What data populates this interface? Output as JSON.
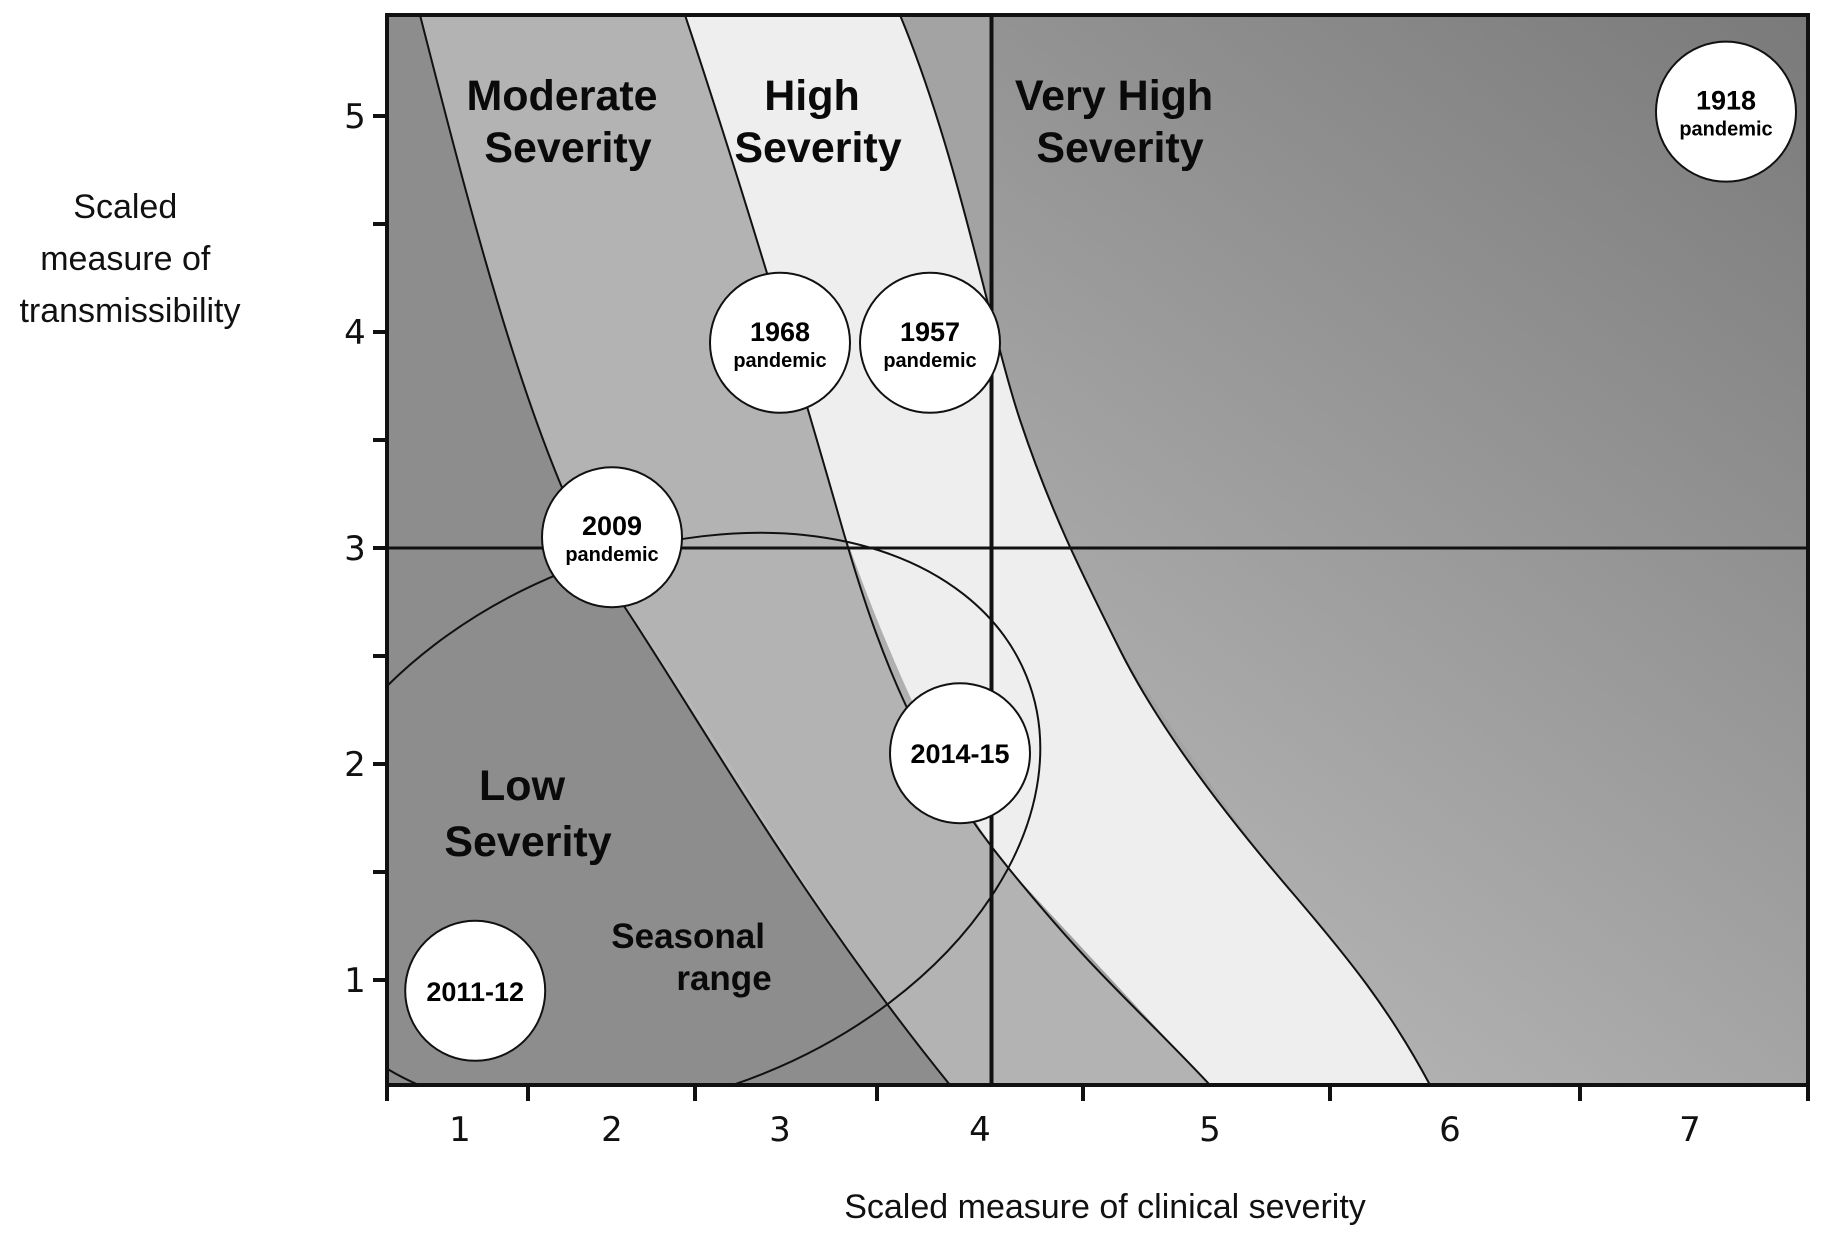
{
  "chart_data": {
    "type": "scatter",
    "xlabel": "Scaled measure of clinical severity",
    "ylabel": [
      "Scaled",
      "measure of",
      "transmissibility"
    ],
    "x_ticks": [
      1,
      2,
      3,
      4,
      5,
      6,
      7
    ],
    "y_ticks": [
      1,
      2,
      3,
      4,
      5
    ],
    "xlim": [
      0.65,
      7.55
    ],
    "ylim": [
      0.55,
      5.5
    ],
    "thresholds": {
      "x": 4.05,
      "y": 3.0
    },
    "regions": [
      {
        "name": "low",
        "lines": [
          "Low",
          "Severity"
        ],
        "x": 1.95,
        "y": 1.78
      },
      {
        "name": "moderate",
        "lines": [
          "Moderate",
          "Severity"
        ],
        "x": 2.35,
        "y": 4.98
      },
      {
        "name": "high",
        "lines": [
          "High",
          "Severity"
        ],
        "x": 3.4,
        "y": 4.98
      },
      {
        "name": "very-high",
        "lines": [
          "Very High",
          "Severity"
        ],
        "x": 4.75,
        "y": 4.98
      }
    ],
    "seasonal_range": {
      "lines": [
        "Seasonal",
        "range"
      ],
      "center": [
        2.6,
        1.78
      ],
      "rx": 1.55,
      "ry": 1.22
    },
    "points": [
      {
        "label": "1918",
        "sublabel": "pandemic",
        "x": 7.15,
        "y": 5.02
      },
      {
        "label": "1968",
        "sublabel": "pandemic",
        "x": 3.0,
        "y": 3.95
      },
      {
        "label": "1957",
        "sublabel": "pandemic",
        "x": 3.75,
        "y": 3.95
      },
      {
        "label": "2009",
        "sublabel": "pandemic",
        "x": 2.0,
        "y": 3.05
      },
      {
        "label": "2014-15",
        "sublabel": "",
        "x": 3.9,
        "y": 2.05
      },
      {
        "label": "2011-12",
        "sublabel": "",
        "x": 1.1,
        "y": 0.95
      }
    ],
    "colors": {
      "low": "#8d8d8d",
      "moderate": "#b3b3b3",
      "high": "#eeeeee",
      "very_high_light": "#d0d0d0",
      "very_high_dark": "#7a7a7a",
      "band_after_high": "#a3a3a3",
      "bubble_fill": "#ffffff",
      "line": "#111111"
    }
  }
}
